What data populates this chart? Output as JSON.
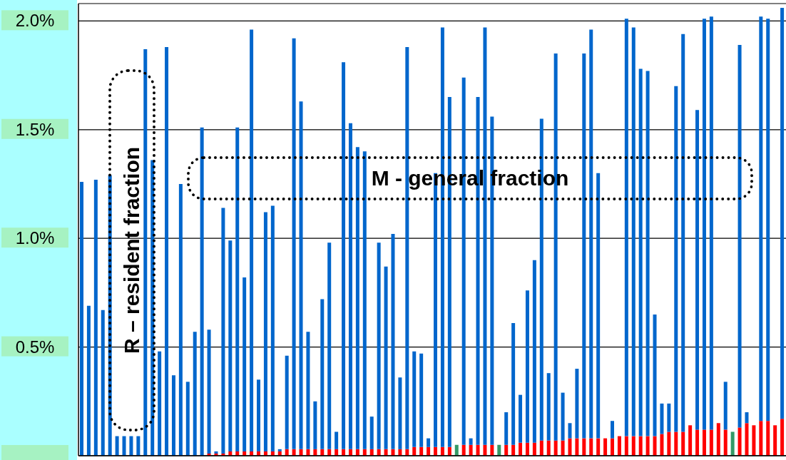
{
  "chart_data": {
    "type": "bar",
    "stacked": true,
    "grid": "y",
    "categories": [
      null,
      null,
      null,
      null,
      null,
      null,
      null,
      null,
      null,
      null,
      null,
      null,
      null,
      null,
      null,
      null,
      null,
      null,
      null,
      null,
      null,
      null,
      null,
      null,
      null,
      null,
      null,
      null,
      null,
      null,
      null,
      null,
      null,
      null,
      null,
      null,
      null,
      null,
      null,
      null,
      null,
      null,
      null,
      null,
      null,
      null,
      null,
      null,
      null,
      null,
      null,
      null,
      null,
      null,
      null,
      null,
      null,
      null,
      null,
      null,
      null,
      null,
      null,
      null,
      null,
      null,
      null,
      null,
      null,
      null,
      null,
      null,
      null,
      null,
      null,
      null,
      null,
      null,
      null,
      null,
      null,
      null,
      null,
      null,
      null,
      null,
      null,
      null,
      null,
      null,
      null,
      null,
      null,
      null,
      null,
      null,
      null,
      null,
      null,
      null
    ],
    "series": [
      {
        "color": "#ff0000",
        "values": [
          null,
          null,
          null,
          null,
          null,
          null,
          null,
          null,
          null,
          null,
          null,
          null,
          null,
          null,
          null,
          null,
          null,
          null,
          0.01,
          0.01,
          0.01,
          0.02,
          0.02,
          0.02,
          0.02,
          0.02,
          0.02,
          0.02,
          0.02,
          0.03,
          0.03,
          0.03,
          0.03,
          0.03,
          0.03,
          0.03,
          0.03,
          0.03,
          0.03,
          0.03,
          0.03,
          0.03,
          0.03,
          0.03,
          0.03,
          0.03,
          0.03,
          0.04,
          0.04,
          0.04,
          0.04,
          0.04,
          0.04,
          null,
          0.05,
          0.05,
          0.05,
          0.05,
          0.05,
          null,
          0.05,
          0.05,
          0.06,
          0.06,
          0.06,
          0.07,
          0.07,
          0.07,
          0.07,
          0.08,
          0.08,
          0.08,
          0.08,
          0.08,
          0.08,
          0.08,
          0.09,
          0.09,
          0.09,
          0.09,
          0.09,
          0.09,
          0.1,
          0.11,
          0.11,
          0.11,
          0.14,
          0.12,
          0.12,
          0.12,
          0.15,
          0.12,
          null,
          0.13,
          0.15,
          0.14,
          0.16,
          0.16,
          0.14,
          0.17
        ]
      },
      {
        "color": "#0066cc",
        "values": [
          1.26,
          0.69,
          1.27,
          0.67,
          1.29,
          0.09,
          0.09,
          0.09,
          0.09,
          1.87,
          1.36,
          0.48,
          1.88,
          0.37,
          1.25,
          0.34,
          0.57,
          1.51,
          0.57,
          0.01,
          1.13,
          0.97,
          1.49,
          0.8,
          1.94,
          0.33,
          1.1,
          1.13,
          0.01,
          0.43,
          1.89,
          1.6,
          0.54,
          0.22,
          0.69,
          0.95,
          0.08,
          1.78,
          1.5,
          1.39,
          1.37,
          0.15,
          0.95,
          0.84,
          0.99,
          0.33,
          1.85,
          0.44,
          0.43,
          0.04,
          1.26,
          1.93,
          1.61,
          null,
          1.69,
          0.03,
          1.6,
          1.92,
          1.51,
          null,
          0.15,
          0.56,
          0.22,
          0.7,
          0.84,
          1.48,
          0.31,
          1.78,
          0.22,
          0.07,
          0.32,
          1.77,
          1.88,
          1.22,
          null,
          0.08,
          null,
          1.92,
          1.88,
          1.69,
          1.68,
          0.56,
          0.14,
          0.13,
          1.59,
          1.83,
          null,
          1.47,
          1.89,
          1.9,
          null,
          0.22,
          null,
          1.76,
          0.05,
          null,
          1.86,
          1.85,
          null,
          1.89
        ]
      },
      {
        "color": "#339966",
        "values": [
          null,
          null,
          null,
          null,
          null,
          null,
          null,
          null,
          null,
          null,
          null,
          null,
          null,
          null,
          null,
          null,
          null,
          null,
          null,
          null,
          null,
          null,
          null,
          null,
          null,
          null,
          null,
          null,
          null,
          null,
          null,
          null,
          null,
          null,
          null,
          null,
          null,
          null,
          null,
          null,
          null,
          null,
          null,
          null,
          null,
          null,
          null,
          null,
          null,
          null,
          null,
          null,
          null,
          0.05,
          null,
          null,
          null,
          null,
          null,
          0.05,
          null,
          null,
          null,
          null,
          null,
          null,
          null,
          null,
          null,
          null,
          null,
          null,
          null,
          null,
          null,
          null,
          null,
          null,
          null,
          null,
          null,
          null,
          null,
          null,
          null,
          null,
          null,
          null,
          null,
          null,
          null,
          null,
          0.11,
          null,
          null,
          null,
          null,
          null,
          null,
          null
        ]
      }
    ],
    "ylim": [
      0,
      2.08
    ],
    "yticks": [
      {
        "value": 0,
        "label": null
      },
      {
        "value": 0.5,
        "label": "0.5%"
      },
      {
        "value": 1,
        "label": "1.0%"
      },
      {
        "value": 1.5,
        "label": "1.5%"
      },
      {
        "value": 2,
        "label": "2.0%"
      }
    ],
    "annotations": [
      "R – resident fraction",
      "M - general fraction"
    ]
  }
}
